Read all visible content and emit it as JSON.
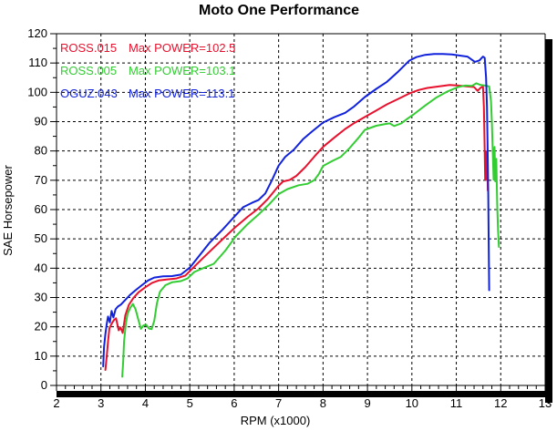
{
  "chart_data": {
    "type": "line",
    "title": "Moto One Performance",
    "xlabel": "RPM (x1000)",
    "ylabel": "SAE Horsepower",
    "xlim": [
      2,
      13
    ],
    "ylim": [
      0,
      120
    ],
    "x_ticks": [
      2,
      3,
      4,
      5,
      6,
      7,
      8,
      9,
      10,
      11,
      12,
      13
    ],
    "y_ticks": [
      0,
      10,
      20,
      30,
      40,
      50,
      60,
      70,
      80,
      90,
      100,
      110,
      120
    ],
    "x_minor_step": 0.2,
    "y_minor_step": 5,
    "grid": "dashed-black-major",
    "legend_position": "top-left-inside",
    "frame_style": "thick-shadow-bottom-right",
    "background_color": "#ffffff",
    "series": [
      {
        "id": "ross-015",
        "name": "ROSS.015",
        "max_label": "Max POWER=102.5",
        "max_power": 102.5,
        "color": "#e8112d",
        "points": [
          [
            3.1,
            5.3
          ],
          [
            3.13,
            10
          ],
          [
            3.16,
            15
          ],
          [
            3.19,
            19.5
          ],
          [
            3.24,
            21
          ],
          [
            3.29,
            22.3
          ],
          [
            3.34,
            22.9
          ],
          [
            3.4,
            18.8
          ],
          [
            3.44,
            19.8
          ],
          [
            3.49,
            17.9
          ],
          [
            3.55,
            24
          ],
          [
            3.63,
            27.5
          ],
          [
            3.73,
            29.8
          ],
          [
            3.85,
            31.8
          ],
          [
            4.0,
            33.5
          ],
          [
            4.15,
            35
          ],
          [
            4.3,
            35.8
          ],
          [
            4.5,
            36.2
          ],
          [
            4.7,
            36.5
          ],
          [
            4.9,
            37.5
          ],
          [
            5.1,
            40.5
          ],
          [
            5.3,
            43.5
          ],
          [
            5.54,
            47
          ],
          [
            5.8,
            50.8
          ],
          [
            6.04,
            54.2
          ],
          [
            6.3,
            57.5
          ],
          [
            6.54,
            60.3
          ],
          [
            6.75,
            63.5
          ],
          [
            7.0,
            68.1
          ],
          [
            7.1,
            69.6
          ],
          [
            7.25,
            70.1
          ],
          [
            7.4,
            71.5
          ],
          [
            7.6,
            74.5
          ],
          [
            7.8,
            78
          ],
          [
            8.0,
            81.4
          ],
          [
            8.25,
            84.5
          ],
          [
            8.5,
            87.5
          ],
          [
            8.7,
            89.5
          ],
          [
            8.94,
            91.6
          ],
          [
            9.2,
            93.8
          ],
          [
            9.44,
            95.9
          ],
          [
            9.7,
            97.8
          ],
          [
            9.94,
            99.6
          ],
          [
            10.15,
            100.8
          ],
          [
            10.35,
            101.5
          ],
          [
            10.6,
            102
          ],
          [
            10.85,
            102.5
          ],
          [
            11.05,
            102.3
          ],
          [
            11.25,
            102
          ],
          [
            11.4,
            101.8
          ],
          [
            11.48,
            100.5
          ],
          [
            11.55,
            101.6
          ],
          [
            11.6,
            102
          ],
          [
            11.62,
            95
          ],
          [
            11.64,
            80
          ],
          [
            11.65,
            70.2
          ],
          [
            11.67,
            79.8
          ],
          [
            11.69,
            70
          ],
          [
            11.7,
            74.5
          ],
          [
            11.71,
            66.5
          ]
        ]
      },
      {
        "id": "ross-005",
        "name": "ROSS.005",
        "max_label": "Max POWER=103.1",
        "max_power": 103.1,
        "color": "#33cc33",
        "points": [
          [
            3.48,
            3
          ],
          [
            3.5,
            8
          ],
          [
            3.52,
            15
          ],
          [
            3.56,
            21
          ],
          [
            3.6,
            24.5
          ],
          [
            3.66,
            26.5
          ],
          [
            3.72,
            27.8
          ],
          [
            3.78,
            26
          ],
          [
            3.84,
            22.5
          ],
          [
            3.9,
            19.3
          ],
          [
            3.96,
            20.5
          ],
          [
            4.02,
            20.7
          ],
          [
            4.08,
            19.4
          ],
          [
            4.14,
            19.2
          ],
          [
            4.2,
            22
          ],
          [
            4.26,
            28
          ],
          [
            4.33,
            32
          ],
          [
            4.45,
            34.2
          ],
          [
            4.6,
            35.2
          ],
          [
            4.8,
            35.6
          ],
          [
            4.95,
            36.5
          ],
          [
            5.1,
            38.7
          ],
          [
            5.3,
            40
          ],
          [
            5.54,
            41.5
          ],
          [
            5.8,
            46
          ],
          [
            6.04,
            51
          ],
          [
            6.3,
            55
          ],
          [
            6.54,
            58.2
          ],
          [
            6.8,
            62
          ],
          [
            7.0,
            65.3
          ],
          [
            7.2,
            67
          ],
          [
            7.45,
            68.3
          ],
          [
            7.65,
            68.8
          ],
          [
            7.8,
            70
          ],
          [
            7.9,
            72
          ],
          [
            8.0,
            74.9
          ],
          [
            8.2,
            76.5
          ],
          [
            8.4,
            78
          ],
          [
            8.6,
            81
          ],
          [
            8.8,
            84.5
          ],
          [
            8.94,
            87.2
          ],
          [
            9.2,
            88.6
          ],
          [
            9.4,
            89.2
          ],
          [
            9.5,
            89.4
          ],
          [
            9.6,
            88.5
          ],
          [
            9.76,
            89.4
          ],
          [
            9.9,
            91
          ],
          [
            10.04,
            92.5
          ],
          [
            10.3,
            95.5
          ],
          [
            10.54,
            98.1
          ],
          [
            10.8,
            100.3
          ],
          [
            11.04,
            101.8
          ],
          [
            11.2,
            102.3
          ],
          [
            11.35,
            102.2
          ],
          [
            11.45,
            103.1
          ],
          [
            11.55,
            102.5
          ],
          [
            11.65,
            102.3
          ],
          [
            11.74,
            102
          ],
          [
            11.78,
            97
          ],
          [
            11.8,
            90.3
          ],
          [
            11.82,
            80
          ],
          [
            11.84,
            70.2
          ],
          [
            11.86,
            81.4
          ],
          [
            11.88,
            69.6
          ],
          [
            11.9,
            77.3
          ],
          [
            11.92,
            62
          ],
          [
            11.94,
            53
          ],
          [
            11.96,
            47.3
          ]
        ]
      },
      {
        "id": "oguz-043",
        "name": "OGUZ.043",
        "max_label": "Max POWER=113.1",
        "max_power": 113.1,
        "color": "#1122dd",
        "points": [
          [
            3.05,
            6.5
          ],
          [
            3.07,
            13
          ],
          [
            3.1,
            17.5
          ],
          [
            3.13,
            21
          ],
          [
            3.16,
            23.5
          ],
          [
            3.2,
            21.5
          ],
          [
            3.24,
            25.4
          ],
          [
            3.28,
            23.2
          ],
          [
            3.33,
            26
          ],
          [
            3.38,
            26.9
          ],
          [
            3.45,
            27.6
          ],
          [
            3.55,
            29.2
          ],
          [
            3.65,
            30.8
          ],
          [
            3.78,
            32.5
          ],
          [
            3.92,
            34.2
          ],
          [
            4.06,
            35.8
          ],
          [
            4.2,
            36.8
          ],
          [
            4.4,
            37.2
          ],
          [
            4.6,
            37.3
          ],
          [
            4.8,
            37.8
          ],
          [
            5.0,
            40.2
          ],
          [
            5.2,
            44
          ],
          [
            5.44,
            48.6
          ],
          [
            5.74,
            53.2
          ],
          [
            6.04,
            58.2
          ],
          [
            6.2,
            60.8
          ],
          [
            6.4,
            62.3
          ],
          [
            6.55,
            63.3
          ],
          [
            6.7,
            65.5
          ],
          [
            6.85,
            70
          ],
          [
            7.0,
            75
          ],
          [
            7.15,
            78
          ],
          [
            7.34,
            80.4
          ],
          [
            7.55,
            84
          ],
          [
            7.75,
            86.6
          ],
          [
            8.0,
            89.7
          ],
          [
            8.25,
            91.5
          ],
          [
            8.5,
            93
          ],
          [
            8.7,
            95.2
          ],
          [
            8.94,
            98.4
          ],
          [
            9.2,
            101.2
          ],
          [
            9.44,
            103.6
          ],
          [
            9.7,
            107.2
          ],
          [
            9.94,
            110.8
          ],
          [
            10.1,
            112
          ],
          [
            10.3,
            112.8
          ],
          [
            10.5,
            113.1
          ],
          [
            10.7,
            113.1
          ],
          [
            10.9,
            112.9
          ],
          [
            11.1,
            112.5
          ],
          [
            11.25,
            112.2
          ],
          [
            11.42,
            110.4
          ],
          [
            11.52,
            110.9
          ],
          [
            11.6,
            112.2
          ],
          [
            11.64,
            111.8
          ],
          [
            11.67,
            105
          ],
          [
            11.69,
            95
          ],
          [
            11.7,
            85
          ],
          [
            11.72,
            65
          ],
          [
            11.73,
            48
          ],
          [
            11.74,
            32.5
          ]
        ]
      }
    ]
  }
}
